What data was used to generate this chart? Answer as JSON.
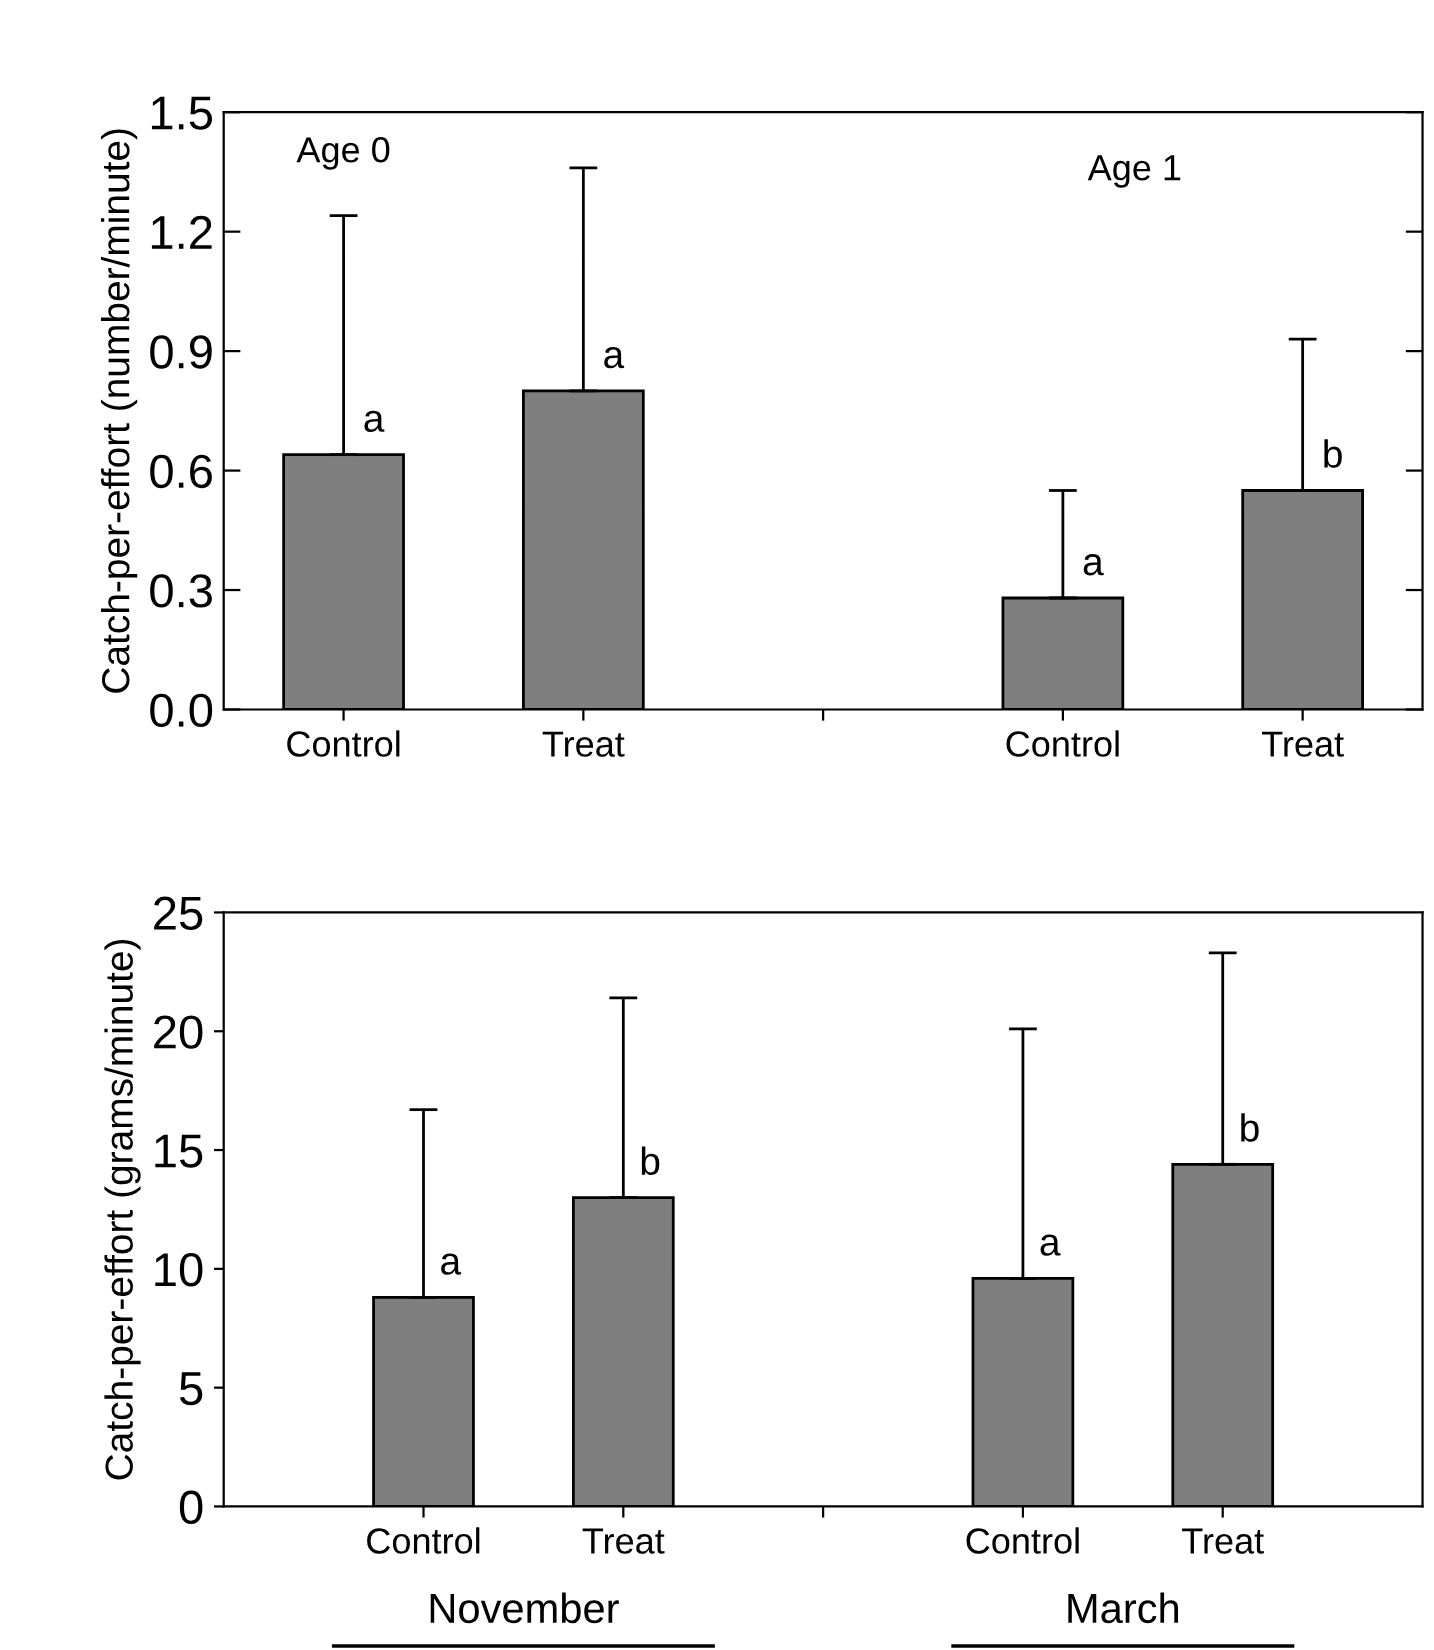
{
  "chart_data": [
    {
      "type": "bar",
      "ylabel": "Catch-per-effort (number/minute)",
      "categories": [
        "Control",
        "Treat",
        null,
        "Control",
        "Treat"
      ],
      "values": [
        0.64,
        0.8,
        null,
        0.28,
        0.55
      ],
      "color": "#7f7f7f",
      "errors": [
        [
          0.64,
          1.24
        ],
        [
          0.8,
          1.36
        ],
        null,
        [
          0.28,
          0.55
        ],
        [
          0.55,
          0.93
        ]
      ],
      "ylim": [
        0,
        1.5
      ],
      "yticks": [
        {
          "value": 0,
          "label": "0.0"
        },
        {
          "value": 0.3,
          "label": "0.3"
        },
        {
          "value": 0.6,
          "label": "0.6"
        },
        {
          "value": 0.9,
          "label": "0.9"
        },
        {
          "value": 1.2,
          "label": "1.2"
        },
        {
          "value": 1.5,
          "label": "1.5"
        }
      ],
      "annotations": [
        "Age 0",
        "Age 1",
        "a",
        "a",
        "a",
        "b"
      ],
      "grid": false
    },
    {
      "type": "bar",
      "ylabel": "Catch-per-effort (grams/minute)",
      "categories": [
        "Control",
        "Treat",
        null,
        "Control",
        "Treat"
      ],
      "values": [
        8.8,
        13,
        null,
        9.6,
        14.4
      ],
      "color": "#7f7f7f",
      "errors": [
        [
          8.8,
          16.7
        ],
        [
          13,
          21.4
        ],
        null,
        [
          9.6,
          20.1
        ],
        [
          14.4,
          23.3
        ]
      ],
      "ylim": [
        0,
        25
      ],
      "yticks": [
        0,
        5,
        10,
        15,
        20,
        25
      ],
      "annotations": [
        "a",
        "b",
        "a",
        "b",
        "November",
        "March"
      ],
      "grid": false
    }
  ]
}
